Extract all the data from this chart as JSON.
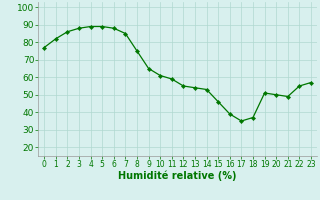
{
  "x": [
    0,
    1,
    2,
    3,
    4,
    5,
    6,
    7,
    8,
    9,
    10,
    11,
    12,
    13,
    14,
    15,
    16,
    17,
    18,
    19,
    20,
    21,
    22,
    23
  ],
  "y": [
    77,
    82,
    86,
    88,
    89,
    89,
    88,
    85,
    75,
    65,
    61,
    59,
    55,
    54,
    53,
    46,
    39,
    35,
    37,
    51,
    50,
    49,
    55,
    57
  ],
  "line_color": "#007700",
  "marker": "D",
  "marker_size": 2.2,
  "bg_color": "#d8f0ee",
  "grid_color": "#b0d8d0",
  "xlabel": "Humidité relative (%)",
  "xlabel_color": "#007700",
  "xlabel_fontsize": 7,
  "ylabel_ticks": [
    20,
    30,
    40,
    50,
    60,
    70,
    80,
    90,
    100
  ],
  "ylim": [
    15,
    103
  ],
  "xlim": [
    -0.5,
    23.5
  ],
  "tick_color": "#007700",
  "ytick_fontsize": 6.5,
  "xtick_fontsize": 5.5
}
